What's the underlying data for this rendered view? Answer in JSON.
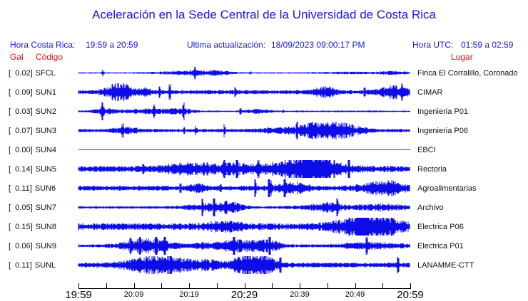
{
  "title": "Aceleración en la Sede Central de la Universidad de Costa Rica",
  "header": {
    "hora_cr_label": "Hora Costa Rica:",
    "hora_cr_value": "19:59 a 20:59",
    "update_label": "Ultima actualización:",
    "update_value": "18/09/2023 09:00:17 PM",
    "hora_utc_label": "Hora UTC:",
    "hora_utc_value": "01:59 a 02:59"
  },
  "columns": {
    "gal": "Gal",
    "codigo": "Código",
    "lugar": "Lugar"
  },
  "colors": {
    "blue_text": "#1717e0",
    "red_text": "#e01010",
    "trace_blue": "#0d0de8",
    "trace_red": "#dd1111",
    "axis_black": "#000000"
  },
  "chart_data": {
    "type": "line",
    "title": "Aceleración en la Sede Central de la Universidad de Costa Rica",
    "y_units": "Gal",
    "time_range_local": "19:59 a 20:59",
    "time_range_utc": "01:59 a 02:59",
    "x_axis": {
      "ticks_every_minutes": 5,
      "labels_every_minutes": 10,
      "labels": [
        {
          "text": "19:59",
          "large": true
        },
        {
          "text": "20:09",
          "large": false
        },
        {
          "text": "20:19",
          "large": false
        },
        {
          "text": "20:29",
          "large": true
        },
        {
          "text": "20:39",
          "large": false
        },
        {
          "text": "20:49",
          "large": false
        },
        {
          "text": "20:59",
          "large": true
        }
      ]
    },
    "series": [
      {
        "gal": 0.02,
        "gal_display": "[  0.02]",
        "code": "SFCL",
        "place": "Finca El Corralillo, Coronado",
        "color": "blue"
      },
      {
        "gal": 0.09,
        "gal_display": "[  0.09]",
        "code": "SUN1",
        "place": "CIMAR",
        "color": "blue"
      },
      {
        "gal": 0.03,
        "gal_display": "[  0.03]",
        "code": "SUN2",
        "place": "Ingenieria P01",
        "color": "blue"
      },
      {
        "gal": 0.07,
        "gal_display": "[  0.07]",
        "code": "SUN3",
        "place": "Ingenieria P06",
        "color": "blue"
      },
      {
        "gal": 0.0,
        "gal_display": "[  0.00]",
        "code": "SUN4",
        "place": "EBCI",
        "color": "red"
      },
      {
        "gal": 0.14,
        "gal_display": "[  0.14]",
        "code": "SUN5",
        "place": "Rectoria",
        "color": "blue"
      },
      {
        "gal": 0.11,
        "gal_display": "[  0.11]",
        "code": "SUN6",
        "place": "Agroalimentarias",
        "color": "blue"
      },
      {
        "gal": 0.05,
        "gal_display": "[  0.05]",
        "code": "SUN7",
        "place": "Archivo",
        "color": "blue"
      },
      {
        "gal": 0.15,
        "gal_display": "[  0.15]",
        "code": "SUN8",
        "place": "Electrica P06",
        "color": "blue"
      },
      {
        "gal": 0.06,
        "gal_display": "[  0.06]",
        "code": "SUN9",
        "place": "Electrica P01",
        "color": "blue"
      },
      {
        "gal": 0.11,
        "gal_display": "[  0.11]",
        "code": "SUNL",
        "place": "LANAMME-CTT",
        "color": "blue"
      }
    ]
  }
}
